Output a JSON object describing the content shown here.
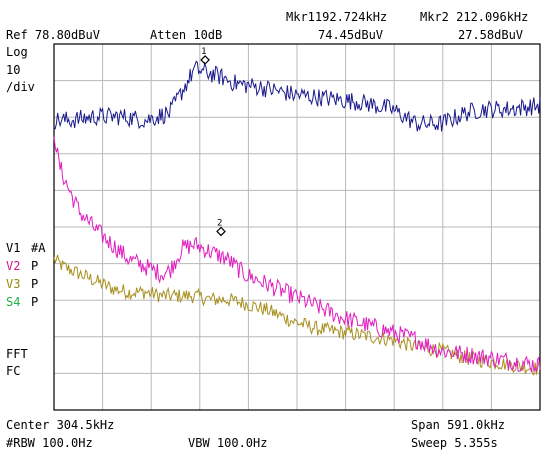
{
  "header": {
    "ref": "Ref 78.80dBuV",
    "atten": "Atten 10dB",
    "mkr1": "Mkr1192.724kHz",
    "mkr1_level": "74.45dBuV",
    "mkr2": "Mkr2 212.096kHz",
    "mkr2_level": "27.58dBuV"
  },
  "left_panel": {
    "scale_type": "Log",
    "scale_value": "10",
    "scale_unit": "/div",
    "traces": [
      {
        "label": "V1",
        "mode": "#A"
      },
      {
        "label": "V2",
        "mode": "P"
      },
      {
        "label": "V3",
        "mode": "P"
      },
      {
        "label": "S4",
        "mode": "P"
      }
    ],
    "fft": "FFT",
    "fc": "FC"
  },
  "footer": {
    "center": "Center 304.5kHz",
    "span": "Span 591.0kHz",
    "rbw": "#RBW 100.0Hz",
    "vbw": "VBW 100.0Hz",
    "sweep": "Sweep 5.355s"
  },
  "markers": [
    {
      "id": "1",
      "freq_khz": 192.724,
      "level_dbuv": 74.45
    },
    {
      "id": "2",
      "freq_khz": 212.096,
      "level_dbuv": 27.58
    }
  ],
  "colors": {
    "trace1": "#1a1a8c",
    "trace2": "#e01ec0",
    "trace3": "#a89020",
    "grid": "#b8b8b8",
    "frame": "#000000"
  },
  "chart_data": {
    "type": "line",
    "x_unit": "kHz",
    "y_unit": "dBuV",
    "xlim": [
      9.0,
      600.0
    ],
    "ylim": [
      -21.2,
      78.8
    ],
    "grid": true,
    "series": [
      {
        "x": [
          9,
          30,
          60,
          90,
          120,
          150,
          165,
          180,
          195,
          210,
          230,
          260,
          300,
          340,
          380,
          420,
          450,
          480,
          510,
          530,
          560,
          600
        ],
        "values": [
          58,
          58,
          59,
          59,
          58,
          60,
          66,
          72,
          71,
          70,
          68,
          67,
          65,
          64,
          63,
          61,
          57,
          57,
          60,
          61,
          61,
          62
        ]
      },
      {
        "x": [
          9,
          15,
          25,
          40,
          60,
          80,
          100,
          120,
          140,
          150,
          165,
          180,
          200,
          220,
          240,
          270,
          300,
          330,
          360,
          390,
          420,
          450,
          480,
          510,
          540,
          570,
          600
        ],
        "values": [
          55,
          46,
          40,
          33,
          28,
          24,
          20,
          18,
          16,
          17,
          23,
          24,
          22,
          20,
          16,
          13,
          10,
          7,
          4,
          2,
          0,
          -2,
          -5,
          -6,
          -7,
          -8,
          -9
        ]
      },
      {
        "x": [
          9,
          20,
          40,
          60,
          80,
          100,
          120,
          140,
          160,
          180,
          200,
          220,
          240,
          270,
          300,
          330,
          360,
          390,
          420,
          450,
          480,
          510,
          540,
          570,
          600
        ],
        "values": [
          20,
          18,
          16,
          14,
          12,
          11,
          11,
          10,
          10,
          10,
          9,
          9,
          8,
          6,
          3,
          1,
          0,
          -1,
          -2,
          -4,
          -5,
          -7,
          -8,
          -9,
          -10
        ]
      }
    ]
  }
}
